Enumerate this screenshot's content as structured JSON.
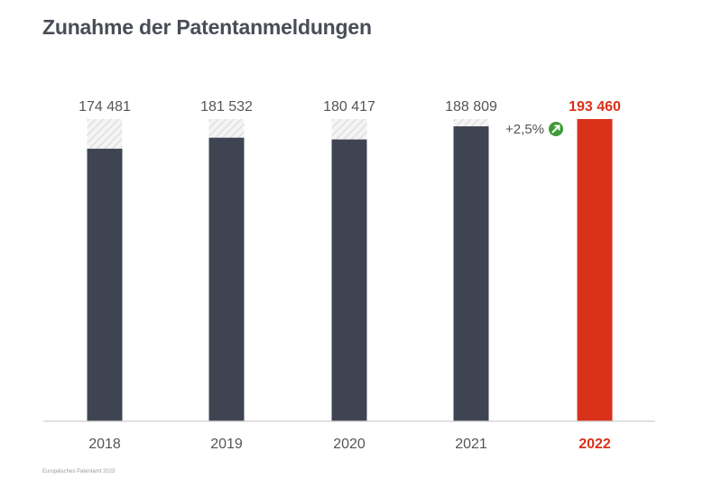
{
  "title": "Zunahme der Patentanmeldungen",
  "source": "Europäisches Patentamt 2023",
  "colors": {
    "bar": "#3f4452",
    "highlight": "#d9311a",
    "badge": "#3f9a35",
    "hatch": "#d0d0d0",
    "text": "#555555"
  },
  "chart_data": {
    "type": "bar",
    "title": "Zunahme der Patentanmeldungen",
    "xlabel": "",
    "ylabel": "",
    "categories": [
      "2018",
      "2019",
      "2020",
      "2021",
      "2022"
    ],
    "values": [
      174481,
      181532,
      180417,
      188809,
      193460
    ],
    "value_labels": [
      "174 481",
      "181 532",
      "180 417",
      "188 809",
      "193 460"
    ],
    "highlight_index": 4,
    "ylim": [
      0,
      193460
    ],
    "grid": false,
    "annotation": {
      "text": "+2,5%",
      "icon": "arrow-up-right-icon",
      "between": [
        "2021",
        "2022"
      ]
    }
  }
}
